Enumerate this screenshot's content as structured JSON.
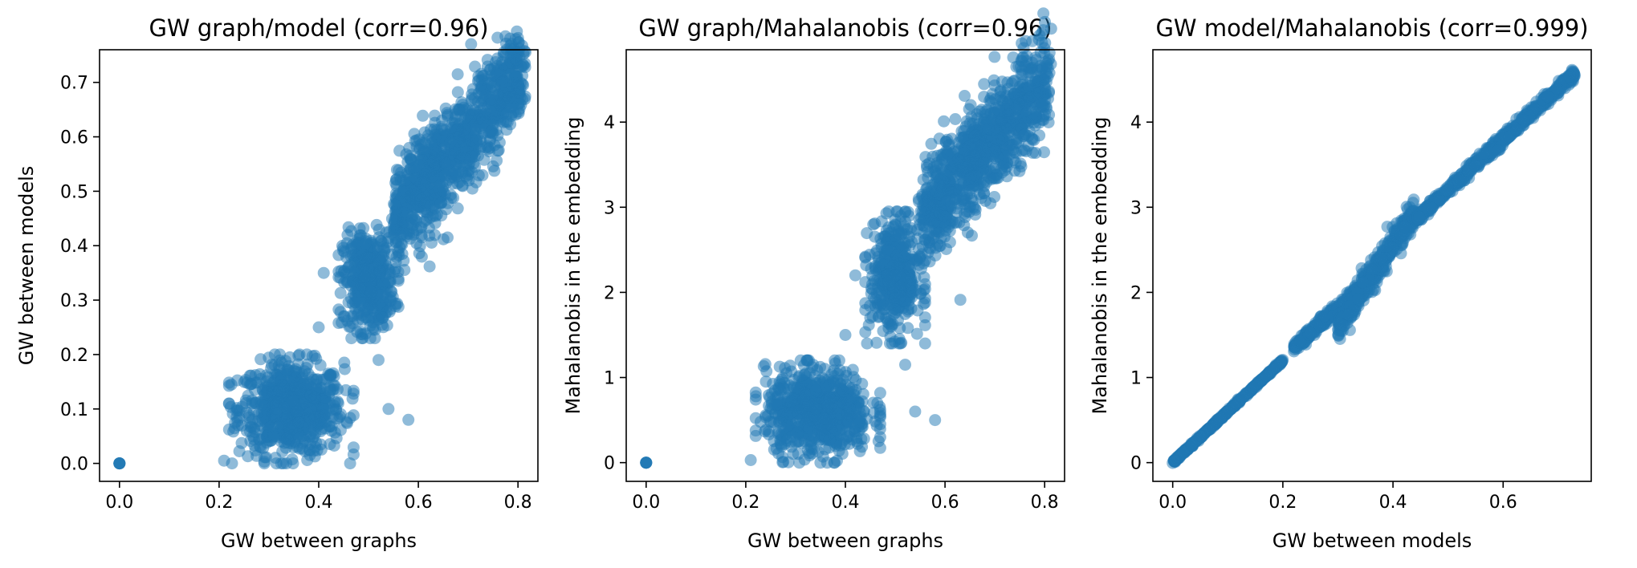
{
  "chart_data": [
    {
      "type": "scatter",
      "title": "GW graph/model (corr=0.96)",
      "xlabel": "GW between graphs",
      "ylabel": "GW between models",
      "xlim": [
        -0.04,
        0.84
      ],
      "ylim": [
        -0.033,
        0.76
      ],
      "xticks": [
        0.0,
        0.2,
        0.4,
        0.6,
        0.8
      ],
      "yticks": [
        0.0,
        0.1,
        0.2,
        0.3,
        0.4,
        0.5,
        0.6,
        0.7
      ],
      "color": "#1f77b4",
      "grid": false,
      "clusters": [
        {
          "kind": "point",
          "x": 0.0,
          "y": 0.0
        },
        {
          "kind": "blob",
          "x": [
            0.22,
            0.47
          ],
          "y": [
            0.0,
            0.2
          ],
          "mass": 1.0
        },
        {
          "kind": "blob",
          "x": [
            0.44,
            0.56
          ],
          "y": [
            0.23,
            0.44
          ],
          "mass": 0.6
        },
        {
          "kind": "band",
          "x": [
            0.55,
            0.81
          ],
          "y": [
            0.45,
            0.72
          ],
          "width": 0.045,
          "mass": 1.2
        }
      ],
      "outliers": [
        {
          "x": 0.21,
          "y": 0.005
        },
        {
          "x": 0.4,
          "y": 0.25
        },
        {
          "x": 0.41,
          "y": 0.35
        },
        {
          "x": 0.52,
          "y": 0.19
        },
        {
          "x": 0.54,
          "y": 0.1
        },
        {
          "x": 0.58,
          "y": 0.08
        },
        {
          "x": 0.35,
          "y": 0.15
        },
        {
          "x": 0.45,
          "y": 0.27
        }
      ]
    },
    {
      "type": "scatter",
      "title": "GW graph/Mahalanobis (corr=0.96)",
      "xlabel": "GW between graphs",
      "ylabel": "Mahalanobis in the embedding",
      "xlim": [
        -0.04,
        0.84
      ],
      "ylim": [
        -0.22,
        4.85
      ],
      "xticks": [
        0.0,
        0.2,
        0.4,
        0.6,
        0.8
      ],
      "yticks": [
        0,
        1,
        2,
        3,
        4
      ],
      "color": "#1f77b4",
      "grid": false,
      "clusters": [
        {
          "kind": "point",
          "x": 0.0,
          "y": 0.0
        },
        {
          "kind": "blob",
          "x": [
            0.22,
            0.47
          ],
          "y": [
            0.0,
            1.2
          ],
          "mass": 1.0
        },
        {
          "kind": "blob",
          "x": [
            0.44,
            0.56
          ],
          "y": [
            1.4,
            2.95
          ],
          "mass": 0.6
        },
        {
          "kind": "band",
          "x": [
            0.55,
            0.81
          ],
          "y": [
            2.85,
            4.55
          ],
          "width": 0.3,
          "mass": 1.2
        }
      ],
      "outliers": [
        {
          "x": 0.21,
          "y": 0.03
        },
        {
          "x": 0.4,
          "y": 1.5
        },
        {
          "x": 0.42,
          "y": 2.2
        },
        {
          "x": 0.52,
          "y": 1.15
        },
        {
          "x": 0.54,
          "y": 0.6
        },
        {
          "x": 0.58,
          "y": 0.5
        },
        {
          "x": 0.36,
          "y": 0.9
        },
        {
          "x": 0.45,
          "y": 1.7
        }
      ]
    },
    {
      "type": "scatter",
      "title": "GW model/Mahalanobis (corr=0.999)",
      "xlabel": "GW between models",
      "ylabel": "Mahalanobis in the embedding",
      "xlim": [
        -0.036,
        0.76
      ],
      "ylim": [
        -0.22,
        4.85
      ],
      "xticks": [
        0.0,
        0.2,
        0.4,
        0.6
      ],
      "yticks": [
        0,
        1,
        2,
        3,
        4
      ],
      "color": "#1f77b4",
      "grid": false,
      "clusters": [
        {
          "kind": "line",
          "x": [
            0.0,
            0.2
          ],
          "y": [
            0.0,
            1.2
          ],
          "spread": 0.02,
          "mass": 0.5
        },
        {
          "kind": "line",
          "x": [
            0.22,
            0.34
          ],
          "y": [
            1.35,
            2.05
          ],
          "spread": 0.08,
          "mass": 0.35
        },
        {
          "kind": "line",
          "x": [
            0.3,
            0.44
          ],
          "y": [
            1.6,
            2.95
          ],
          "spread": 0.18,
          "mass": 0.6
        },
        {
          "kind": "line",
          "x": [
            0.44,
            0.73
          ],
          "y": [
            2.85,
            4.57
          ],
          "spread": 0.07,
          "mass": 0.9
        }
      ],
      "outliers": []
    }
  ]
}
